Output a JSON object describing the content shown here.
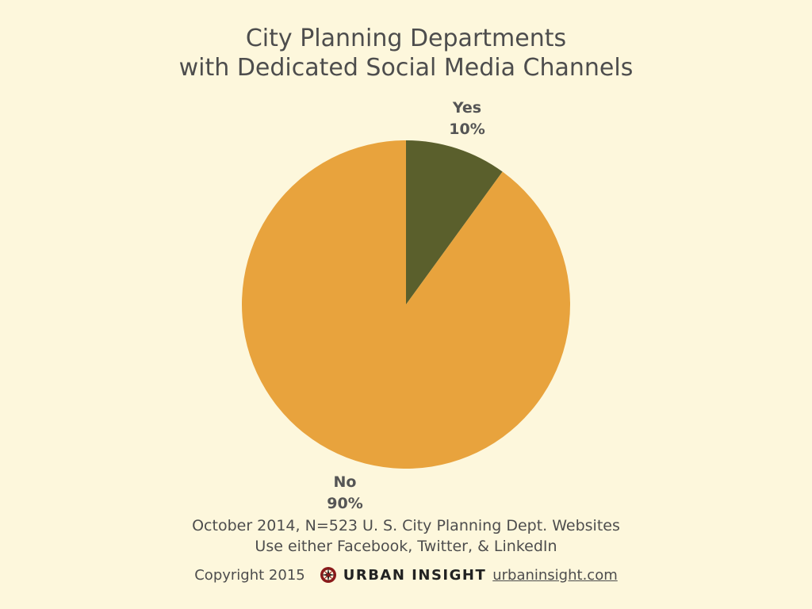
{
  "chart_data": {
    "type": "pie",
    "title_lines": [
      "City Planning Departments",
      "with Dedicated Social Media Channels"
    ],
    "slices": [
      {
        "name": "Yes",
        "value": 10,
        "label": "10%",
        "color": "#5a5f2c"
      },
      {
        "name": "No",
        "value": 90,
        "label": "90%",
        "color": "#e8a33d"
      }
    ]
  },
  "notes": [
    "October 2014, N=523 U. S. City Planning Dept. Websites",
    "Use either Facebook, Twitter, & LinkedIn"
  ],
  "footer": {
    "copyright": "Copyright 2015",
    "brand": "URBAN INSIGHT",
    "url": "urbaninsight.com",
    "logo_icon": "compass-rose-icon"
  },
  "colors": {
    "background": "#fdf7dc",
    "yes_slice": "#5a5f2c",
    "no_slice": "#e8a33d",
    "logo_red": "#8b1a1a"
  }
}
